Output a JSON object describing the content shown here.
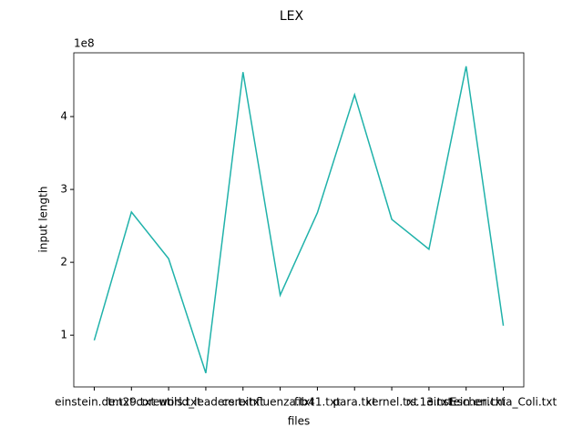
{
  "chart_data": {
    "type": "line",
    "title": "LEX",
    "xlabel": "files",
    "ylabel": "input length",
    "y_offset_label": "1e8",
    "categories": [
      "einstein.de.txt",
      "tm29.txt",
      "coreutils.txt",
      "world_leaders.txt",
      "cere.txt",
      "influenza.txt",
      "fib41.txt",
      "para.txt",
      "kernel.txt",
      "rs.13.txt",
      "einstein.en.txt",
      "Escherichia_Coli.txt"
    ],
    "series": [
      {
        "name": "input length",
        "color": "#20b2aa",
        "values": [
          93000000,
          269000000,
          205000000,
          48000000,
          461000000,
          155000000,
          268000000,
          430000000,
          259000000,
          218000000,
          469000000,
          113000000
        ]
      }
    ],
    "ylim": [
      29000000,
      487500000
    ],
    "yticks": [
      {
        "value": 100000000,
        "label": "1"
      },
      {
        "value": 200000000,
        "label": "2"
      },
      {
        "value": 300000000,
        "label": "3"
      },
      {
        "value": 400000000,
        "label": "4"
      }
    ],
    "grid": false
  }
}
